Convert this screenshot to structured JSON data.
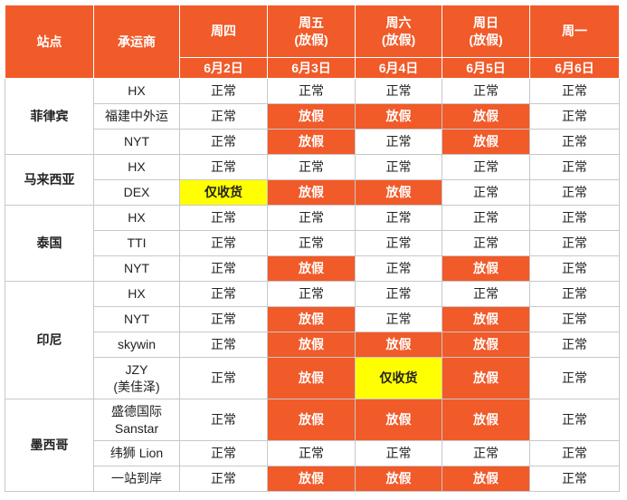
{
  "header": {
    "site": "站点",
    "carrier": "承运商",
    "days": [
      {
        "weekday": "周四",
        "date": "6月2日"
      },
      {
        "weekday": "周五\n(放假)",
        "date": "6月3日"
      },
      {
        "weekday": "周六\n(放假)",
        "date": "6月4日"
      },
      {
        "weekday": "周日\n(放假)",
        "date": "6月5日"
      },
      {
        "weekday": "周一",
        "date": "6月6日"
      }
    ]
  },
  "groups": [
    {
      "site": "菲律宾",
      "carriers": [
        {
          "name": "HX",
          "status": [
            "正常",
            "正常",
            "正常",
            "正常",
            "正常"
          ]
        },
        {
          "name": "福建中外运",
          "status": [
            "正常",
            "放假",
            "放假",
            "放假",
            "正常"
          ]
        },
        {
          "name": "NYT",
          "status": [
            "正常",
            "放假",
            "正常",
            "放假",
            "正常"
          ]
        }
      ]
    },
    {
      "site": "马来西亚",
      "carriers": [
        {
          "name": "HX",
          "status": [
            "正常",
            "正常",
            "正常",
            "正常",
            "正常"
          ]
        },
        {
          "name": "DEX",
          "status": [
            "仅收货",
            "放假",
            "放假",
            "正常",
            "正常"
          ]
        }
      ]
    },
    {
      "site": "泰国",
      "carriers": [
        {
          "name": "HX",
          "status": [
            "正常",
            "正常",
            "正常",
            "正常",
            "正常"
          ]
        },
        {
          "name": "TTI",
          "status": [
            "正常",
            "正常",
            "正常",
            "正常",
            "正常"
          ]
        },
        {
          "name": "NYT",
          "status": [
            "正常",
            "放假",
            "正常",
            "放假",
            "正常"
          ]
        }
      ]
    },
    {
      "site": "印尼",
      "carriers": [
        {
          "name": "HX",
          "status": [
            "正常",
            "正常",
            "正常",
            "正常",
            "正常"
          ]
        },
        {
          "name": "NYT",
          "status": [
            "正常",
            "放假",
            "正常",
            "放假",
            "正常"
          ]
        },
        {
          "name": "skywin",
          "status": [
            "正常",
            "放假",
            "放假",
            "放假",
            "正常"
          ]
        },
        {
          "name": "JZY\n(美佳泽)",
          "status": [
            "正常",
            "放假",
            "仅收货",
            "放假",
            "正常"
          ]
        }
      ]
    },
    {
      "site": "墨西哥",
      "carriers": [
        {
          "name": "盛德国际\nSanstar",
          "status": [
            "正常",
            "放假",
            "放假",
            "放假",
            "正常"
          ]
        },
        {
          "name": "纬狮 Lion",
          "status": [
            "正常",
            "正常",
            "正常",
            "正常",
            "正常"
          ]
        },
        {
          "name": "一站到岸",
          "status": [
            "正常",
            "放假",
            "放假",
            "放假",
            "正常"
          ]
        }
      ]
    }
  ]
}
